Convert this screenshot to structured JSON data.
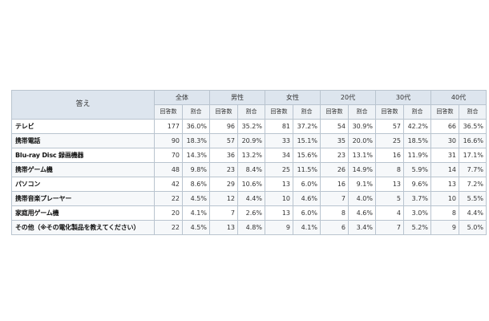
{
  "colors": {
    "header_bg": "#dde5ee",
    "subheader_bg": "#eef2f6",
    "border": "#b9c4cf",
    "stripe": "#f6f8fa"
  },
  "table": {
    "answer_header": "答え",
    "groups": [
      "全体",
      "男性",
      "女性",
      "20代",
      "30代",
      "40代"
    ],
    "sub_headers": {
      "count": "回答数",
      "ratio": "割合"
    },
    "rows": [
      {
        "answer": "テレビ",
        "cells": [
          [
            "177",
            "36.0%"
          ],
          [
            "96",
            "35.2%"
          ],
          [
            "81",
            "37.2%"
          ],
          [
            "54",
            "30.9%"
          ],
          [
            "57",
            "42.2%"
          ],
          [
            "66",
            "36.5%"
          ]
        ]
      },
      {
        "answer": "携帯電話",
        "cells": [
          [
            "90",
            "18.3%"
          ],
          [
            "57",
            "20.9%"
          ],
          [
            "33",
            "15.1%"
          ],
          [
            "35",
            "20.0%"
          ],
          [
            "25",
            "18.5%"
          ],
          [
            "30",
            "16.6%"
          ]
        ]
      },
      {
        "answer": "Blu-ray Disc 録画機器",
        "cells": [
          [
            "70",
            "14.3%"
          ],
          [
            "36",
            "13.2%"
          ],
          [
            "34",
            "15.6%"
          ],
          [
            "23",
            "13.1%"
          ],
          [
            "16",
            "11.9%"
          ],
          [
            "31",
            "17.1%"
          ]
        ]
      },
      {
        "answer": "携帯ゲーム機",
        "cells": [
          [
            "48",
            "9.8%"
          ],
          [
            "23",
            "8.4%"
          ],
          [
            "25",
            "11.5%"
          ],
          [
            "26",
            "14.9%"
          ],
          [
            "8",
            "5.9%"
          ],
          [
            "14",
            "7.7%"
          ]
        ]
      },
      {
        "answer": "パソコン",
        "cells": [
          [
            "42",
            "8.6%"
          ],
          [
            "29",
            "10.6%"
          ],
          [
            "13",
            "6.0%"
          ],
          [
            "16",
            "9.1%"
          ],
          [
            "13",
            "9.6%"
          ],
          [
            "13",
            "7.2%"
          ]
        ]
      },
      {
        "answer": "携帯音楽プレーヤー",
        "cells": [
          [
            "22",
            "4.5%"
          ],
          [
            "12",
            "4.4%"
          ],
          [
            "10",
            "4.6%"
          ],
          [
            "7",
            "4.0%"
          ],
          [
            "5",
            "3.7%"
          ],
          [
            "10",
            "5.5%"
          ]
        ]
      },
      {
        "answer": "家庭用ゲーム機",
        "cells": [
          [
            "20",
            "4.1%"
          ],
          [
            "7",
            "2.6%"
          ],
          [
            "13",
            "6.0%"
          ],
          [
            "8",
            "4.6%"
          ],
          [
            "4",
            "3.0%"
          ],
          [
            "8",
            "4.4%"
          ]
        ]
      },
      {
        "answer": "その他（※その電化製品を教えてください）",
        "cells": [
          [
            "22",
            "4.5%"
          ],
          [
            "13",
            "4.8%"
          ],
          [
            "9",
            "4.1%"
          ],
          [
            "6",
            "3.4%"
          ],
          [
            "7",
            "5.2%"
          ],
          [
            "9",
            "5.0%"
          ]
        ]
      }
    ]
  }
}
